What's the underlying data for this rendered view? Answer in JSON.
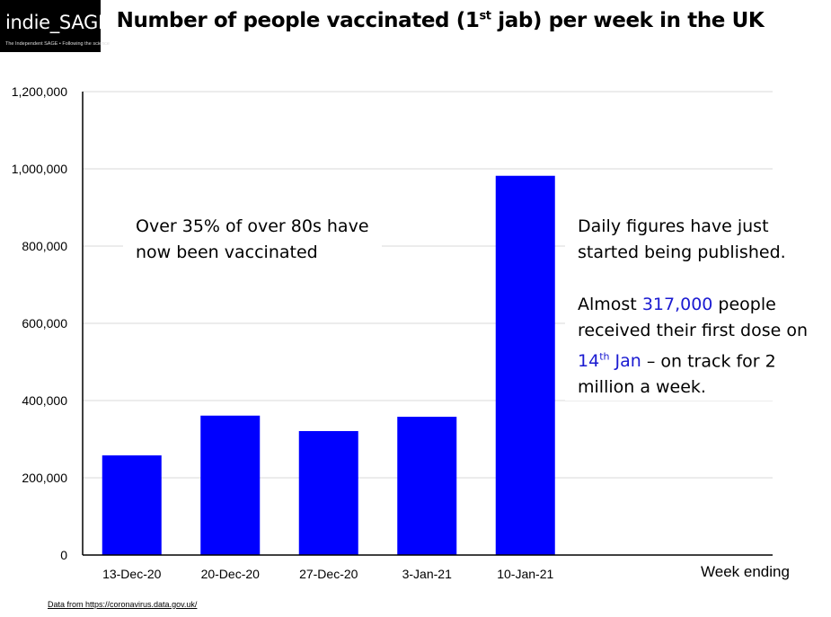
{
  "logo": {
    "main": "indie_SAGE",
    "sub": "The Independent SAGE • Following the science"
  },
  "title": {
    "before": "Number of people vaccinated (1",
    "sup": "st",
    "after": " jab) per week in the UK"
  },
  "annotation_left": {
    "line1": "Over 35% of over 80s have",
    "line2": "now been vaccinated"
  },
  "annotation_right": {
    "line1": "Daily figures have just",
    "line2": "started being published.",
    "line3_a": "Almost ",
    "line3_highlight": "317,000",
    "line3_b": " people",
    "line4": "received their first dose on",
    "line5_highlight_a": "14",
    "line5_highlight_sup": "th",
    "line5_highlight_b": " Jan",
    "line5_rest": " – on track for 2",
    "line6": "million a week."
  },
  "x_axis_title": "Week ending",
  "source": {
    "label": "Data from ",
    "link": "https://coronavirus.data.gov.uk/"
  },
  "colors": {
    "bar": "#0000ff",
    "highlight": "#1a1ad1",
    "grid": "#d9d9d9"
  },
  "chart_data": {
    "type": "bar",
    "categories": [
      "13-Dec-20",
      "20-Dec-20",
      "27-Dec-20",
      "3-Jan-21",
      "10-Jan-21"
    ],
    "values": [
      258000,
      361000,
      321000,
      358000,
      982000
    ],
    "ylim": [
      0,
      1200000
    ],
    "yticks": [
      0,
      200000,
      400000,
      600000,
      800000,
      1000000,
      1200000
    ],
    "ytick_labels": [
      "0",
      "200,000",
      "400,000",
      "600,000",
      "800,000",
      "1,000,000",
      "1,200,000"
    ],
    "xlabel": "Week ending",
    "grid": true
  }
}
